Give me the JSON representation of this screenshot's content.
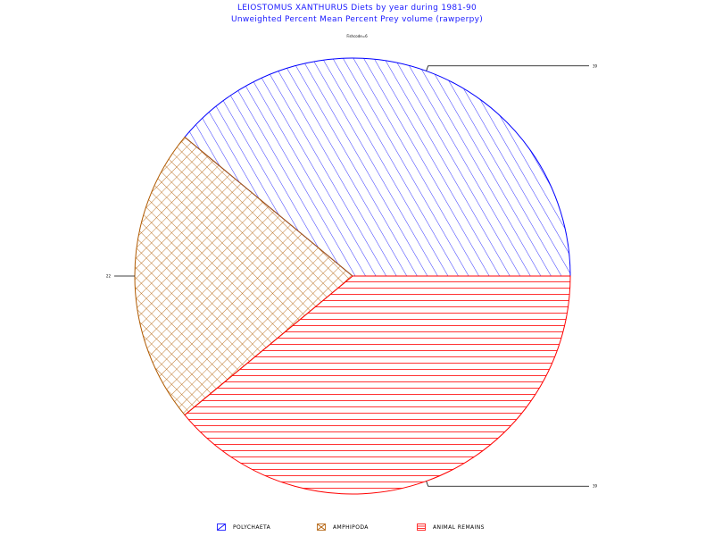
{
  "chart_data": {
    "type": "pie",
    "title": "LEIOSTOMUS XANTHURUS Diets by year during 1981-90",
    "subtitle": "Unweighted Percent Mean Percent Prey  volume (rawperpy)",
    "group_label": "Fishcode=6",
    "slices": [
      {
        "name": "POLYCHAETA",
        "value": 39,
        "label": "39",
        "color": "#0000ff",
        "pattern": "diagonal"
      },
      {
        "name": "AMPHIPODA",
        "value": 22,
        "label": "22",
        "color": "#b05a00",
        "pattern": "crosshatch"
      },
      {
        "name": "ANIMAL REMAINS",
        "value": 39,
        "label": "39",
        "color": "#ff0000",
        "pattern": "horizontal"
      }
    ],
    "legend_position": "bottom"
  }
}
